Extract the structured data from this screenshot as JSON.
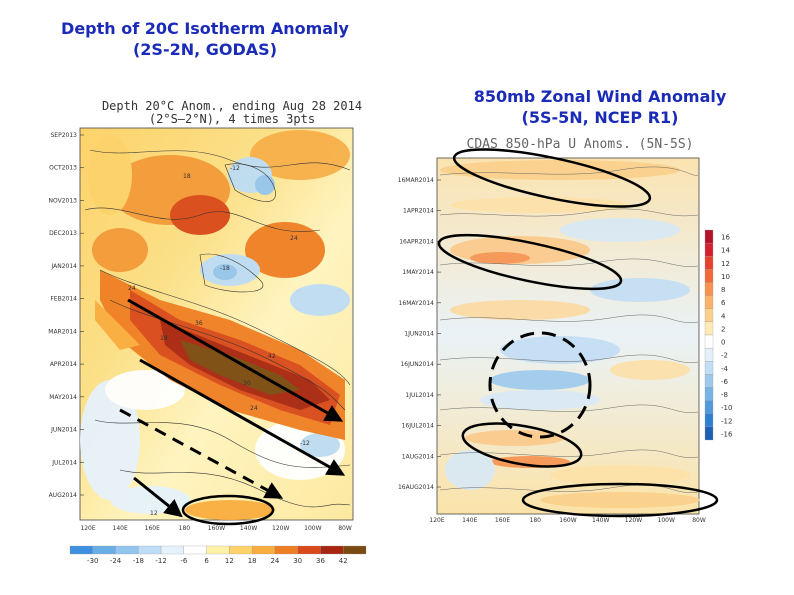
{
  "slide": {
    "left_title_line1": "Depth of 20C Isotherm Anomaly",
    "left_title_line2": "(2S-2N, GODAS)",
    "right_title_line1": "850mb Zonal Wind Anomaly",
    "right_title_line2": "(5S-5N, NCEP R1)"
  },
  "colors": {
    "title": "#1a2bb8",
    "arrow": "#000000"
  },
  "chart_data": [
    {
      "type": "heatmap",
      "title_line1": "Depth 20°C Anom., ending Aug 28 2014",
      "title_line2": "(2°S—2°N), 4 times 3pts",
      "y_tick_labels": [
        "SEP2013",
        "OCT2013",
        "NOV2013",
        "DEC2013",
        "JAN2014",
        "FEB2014",
        "MAR2014",
        "APR2014",
        "MAY2014",
        "JUN2014",
        "JUL2014",
        "AUG2014"
      ],
      "x_tick_labels": [
        "120E",
        "140E",
        "160E",
        "180",
        "160W",
        "140W",
        "120W",
        "100W",
        "80W"
      ],
      "colorbar_ticks": [
        "-30",
        "-24",
        "-18",
        "-12",
        "-6",
        "6",
        "12",
        "18",
        "24",
        "30",
        "36",
        "42"
      ],
      "colorbar_colors": [
        "#3d8fe0",
        "#6aaee8",
        "#93c6ef",
        "#bddcf5",
        "#e6f2fb",
        "#ffffff",
        "#fff2a8",
        "#fdd26a",
        "#f9ad3f",
        "#f07f24",
        "#d9491a",
        "#a8250f",
        "#7a4a10"
      ],
      "contour_labels": [
        "12",
        "18",
        "24",
        "30",
        "36",
        "42",
        "-12",
        "-18"
      ],
      "annotations": [
        "solid arrow: downwelling Kelvin wave (Jan-Apr 2014)",
        "solid arrow: Apr-Aug 2014",
        "dashed arrow: upwelling",
        "ellipse: Aug 2014 warm anomaly"
      ]
    },
    {
      "type": "heatmap",
      "title": "CDAS 850-hPa U Anoms. (5N-5S)",
      "y_tick_labels": [
        "16MAR2014",
        "1APR2014",
        "16APR2014",
        "1MAY2014",
        "16MAY2014",
        "1JUN2014",
        "16JUN2014",
        "1JUL2014",
        "16JUL2014",
        "1AUG2014",
        "16AUG2014"
      ],
      "x_tick_labels": [
        "120E",
        "140E",
        "160E",
        "180",
        "160W",
        "140W",
        "120W",
        "100W",
        "80W"
      ],
      "colorbar_ticks": [
        "16",
        "14",
        "12",
        "10",
        "8",
        "6",
        "4",
        "2",
        "0",
        "-2",
        "-4",
        "-6",
        "-8",
        "-10",
        "-12",
        "-16"
      ],
      "colorbar_colors": [
        "#b8122b",
        "#d6202e",
        "#e8402c",
        "#f26a3a",
        "#f7924f",
        "#fbb36a",
        "#fdd08a",
        "#feeab5",
        "#ffffff",
        "#e3f0fb",
        "#c2def5",
        "#9ccaee",
        "#76b3e6",
        "#4f99dc",
        "#2f7fd0",
        "#1d60b4"
      ],
      "annotations": [
        "ellipse: westerly burst Mar 2014",
        "ellipse: westerly burst Apr 2014",
        "dashed circle: easterly Jun 2014",
        "ellipse: westerly Jul 2014",
        "ellipse: Aug 2014 eastern Pacific"
      ]
    }
  ]
}
